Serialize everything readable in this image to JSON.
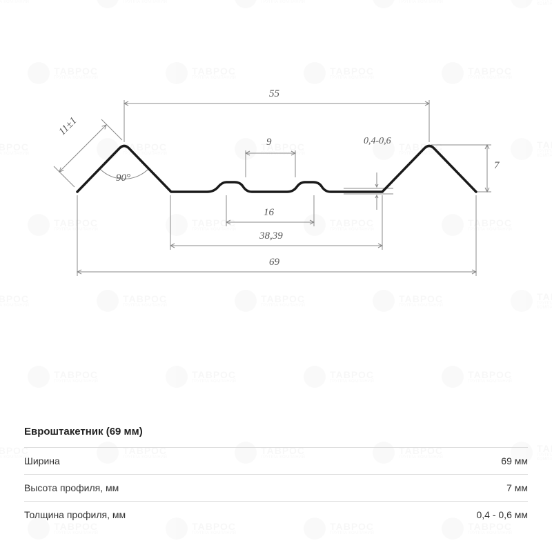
{
  "watermark": {
    "brand": "ТАВРОС",
    "subtitle": "ГРУППА КОМПАНИЙ"
  },
  "diagram": {
    "type": "technical-profile",
    "profile_stroke": "#1a1a1a",
    "profile_stroke_width": 3.5,
    "dimension_stroke": "#888888",
    "dimension_stroke_width": 1,
    "label_color": "#666666",
    "dimensions": {
      "top_span": "55",
      "peak_side": "11±1",
      "angle": "90°",
      "small_bump": "9",
      "thickness": "0,4-0,6",
      "right_height": "7",
      "center_flat": "16",
      "mid_span": "38,39",
      "full_width": "69"
    }
  },
  "spec": {
    "title": "Евроштакетник (69 мм)",
    "rows": [
      {
        "label": "Ширина",
        "value": "69 мм"
      },
      {
        "label": "Высота профиля, мм",
        "value": "7 мм"
      },
      {
        "label": "Толщина профиля, мм",
        "value": "0,4 - 0,6 мм"
      }
    ]
  }
}
